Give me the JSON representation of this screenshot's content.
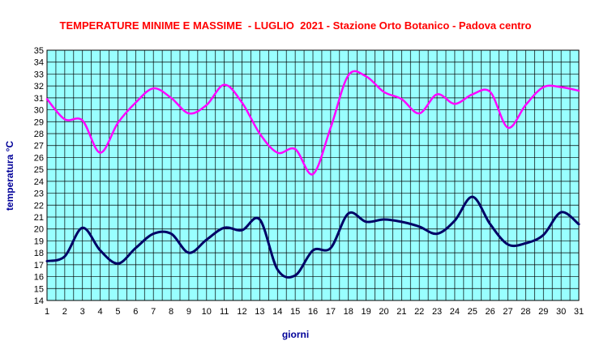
{
  "chart_data": {
    "type": "line",
    "title": "TEMPERATURE MINIME E MASSIME  - LUGLIO  2021 - Stazione Orto Botanico - Padova centro",
    "xlabel": "giorni",
    "ylabel": "temperatura °C",
    "xlim": [
      1,
      31
    ],
    "ylim": [
      14,
      35
    ],
    "x_ticks": [
      "1",
      "2",
      "3",
      "4",
      "5",
      "6",
      "7",
      "8",
      "9",
      "10",
      "11",
      "12",
      "13",
      "14",
      "15",
      "16",
      "17",
      "18",
      "19",
      "20",
      "21",
      "22",
      "23",
      "24",
      "25",
      "26",
      "27",
      "28",
      "29",
      "30",
      "31"
    ],
    "y_ticks": [
      "14",
      "15",
      "16",
      "17",
      "18",
      "19",
      "20",
      "21",
      "22",
      "23",
      "24",
      "25",
      "26",
      "27",
      "28",
      "29",
      "30",
      "31",
      "32",
      "33",
      "34",
      "35"
    ],
    "grid": true,
    "plot_background": "#99ffff",
    "x": [
      1,
      2,
      3,
      4,
      5,
      6,
      7,
      8,
      9,
      10,
      11,
      12,
      13,
      14,
      15,
      16,
      17,
      18,
      19,
      20,
      21,
      22,
      23,
      24,
      25,
      26,
      27,
      28,
      29,
      30,
      31
    ],
    "series": [
      {
        "color": "#ff00ff",
        "values": [
          30.9,
          29.2,
          29.1,
          26.4,
          28.9,
          30.6,
          31.8,
          31.0,
          29.7,
          30.4,
          32.1,
          30.6,
          28.0,
          26.4,
          26.7,
          24.6,
          28.5,
          32.9,
          32.8,
          31.5,
          30.9,
          29.7,
          31.3,
          30.5,
          31.3,
          31.5,
          28.5,
          30.4,
          31.9,
          31.9,
          31.6
        ]
      },
      {
        "color": "#000066",
        "values": [
          17.3,
          17.7,
          20.1,
          18.2,
          17.1,
          18.4,
          19.6,
          19.6,
          18.0,
          19.1,
          20.1,
          19.9,
          20.8,
          16.6,
          16.1,
          18.2,
          18.4,
          21.3,
          20.6,
          20.8,
          20.6,
          20.2,
          19.6,
          20.7,
          22.7,
          20.4,
          18.7,
          18.8,
          19.5,
          21.4,
          20.4
        ]
      }
    ]
  }
}
